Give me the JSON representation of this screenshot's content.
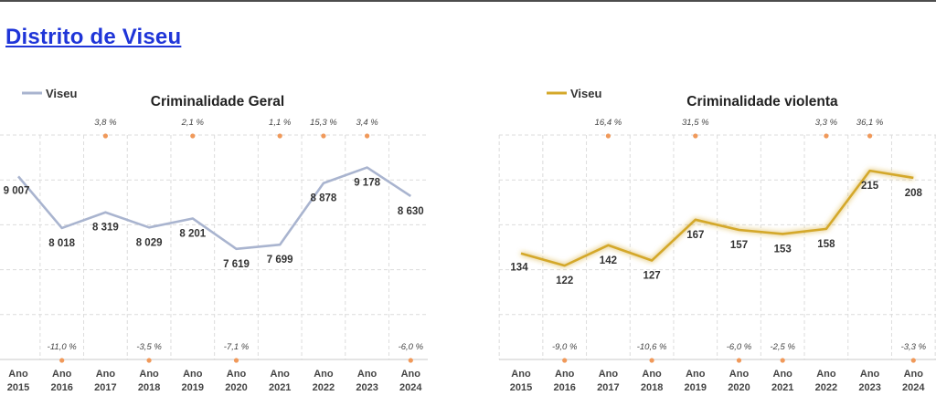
{
  "page": {
    "title": "Distrito de Viseu"
  },
  "chart_data": [
    {
      "type": "line",
      "title": "Criminalidade Geral",
      "legend": "top-left",
      "grid": true,
      "x": [
        "Ano\n2015",
        "Ano\n2016",
        "Ano\n2017",
        "Ano\n2018",
        "Ano\n2019",
        "Ano\n2020",
        "Ano\n2021",
        "Ano\n2022",
        "Ano\n2023",
        "Ano\n2024"
      ],
      "series": [
        {
          "name": "Viseu",
          "color": "#a9b4cf",
          "values": [
            9007,
            8018,
            8319,
            8029,
            8201,
            7619,
            7699,
            8878,
            9178,
            8630
          ],
          "value_labels": [
            "9 007",
            "8 018",
            "8 319",
            "8 029",
            "8 201",
            "7 619",
            "7 699",
            "8 878",
            "9 178",
            "8 630"
          ]
        }
      ],
      "changes": [
        null,
        "-11,0 %",
        "3,8 %",
        "-3,5 %",
        "2,1 %",
        "-7,1 %",
        "1,1 %",
        "15,3 %",
        "3,4 %",
        "-6,0 %"
      ],
      "ylim": [
        5500,
        9800
      ]
    },
    {
      "type": "line",
      "title": "Criminalidade violenta",
      "legend": "top-left",
      "grid": true,
      "x": [
        "Ano\n2015",
        "Ano\n2016",
        "Ano\n2017",
        "Ano\n2018",
        "Ano\n2019",
        "Ano\n2020",
        "Ano\n2021",
        "Ano\n2022",
        "Ano\n2023",
        "Ano\n2024"
      ],
      "series": [
        {
          "name": "Viseu",
          "color": "#d4a82a",
          "values": [
            134,
            122,
            142,
            127,
            167,
            157,
            153,
            158,
            215,
            208
          ],
          "value_labels": [
            "134",
            "122",
            "142",
            "127",
            "167",
            "157",
            "153",
            "158",
            "215",
            "208"
          ]
        }
      ],
      "changes": [
        null,
        "-9,0 %",
        "16,4 %",
        "-10,6 %",
        "31,5 %",
        "-6,0 %",
        "-2,5 %",
        "3,3 %",
        "36,1 %",
        "-3,3 %"
      ],
      "ylim": [
        30,
        250
      ]
    }
  ],
  "colors": {
    "title": "#1f35d8",
    "dot": "#f0995a",
    "grid": "#dcdcdc",
    "text": "#333333"
  }
}
